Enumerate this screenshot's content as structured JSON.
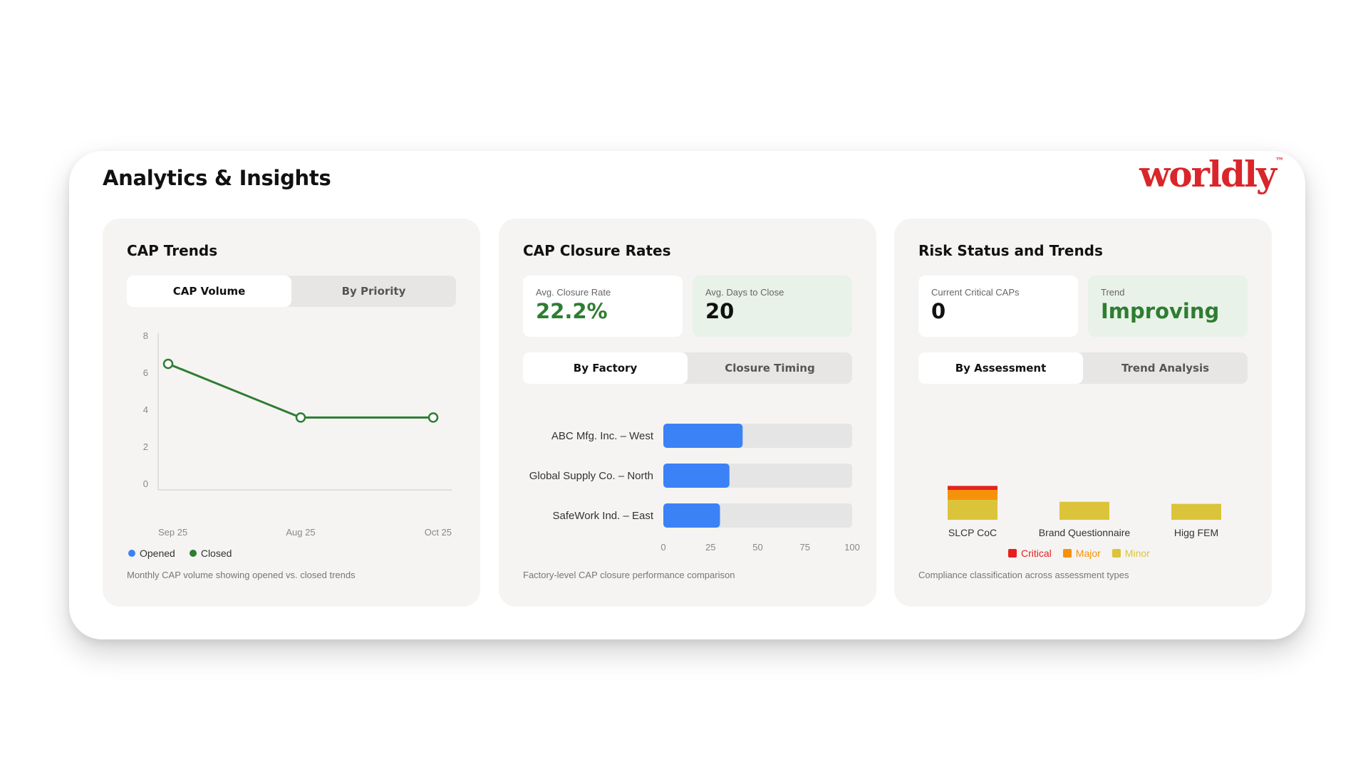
{
  "header": {
    "title": "Analytics & Insights",
    "logo_text": "worldly",
    "logo_tm": "™"
  },
  "colors": {
    "green": "#2e7d32",
    "blue": "#3b82f6",
    "critical": "#e62020",
    "major": "#f5920a",
    "minor": "#dbc43a",
    "logo_red": "#d9262b"
  },
  "cards": {
    "trends": {
      "title": "CAP Trends",
      "tabs": [
        {
          "label": "CAP Volume",
          "active": true
        },
        {
          "label": "By Priority",
          "active": false
        }
      ],
      "legend": [
        {
          "label": "Opened",
          "color": "#3b82f6"
        },
        {
          "label": "Closed",
          "color": "#2e7d32"
        }
      ],
      "caption": "Monthly CAP volume showing opened vs. closed trends"
    },
    "closure": {
      "title": "CAP Closure Rates",
      "stats": [
        {
          "label": "Avg. Closure Rate",
          "value": "22.2%"
        },
        {
          "label": "Avg. Days to Close",
          "value": "20"
        }
      ],
      "tabs": [
        {
          "label": "By Factory",
          "active": true
        },
        {
          "label": "Closure Timing",
          "active": false
        }
      ],
      "caption": "Factory-level CAP closure performance comparison"
    },
    "risk": {
      "title": "Risk Status and Trends",
      "stats": [
        {
          "label": "Current Critical CAPs",
          "value": "0"
        },
        {
          "label": "Trend",
          "value": "Improving"
        }
      ],
      "tabs": [
        {
          "label": "By Assessment",
          "active": true
        },
        {
          "label": "Trend Analysis",
          "active": false
        }
      ],
      "legend": [
        {
          "label": "Critical",
          "color": "#e62020"
        },
        {
          "label": "Major",
          "color": "#f5920a"
        },
        {
          "label": "Minor",
          "color": "#dbc43a"
        }
      ],
      "caption": "Compliance classification across assessment types"
    }
  },
  "chart_data": [
    {
      "type": "line",
      "x": [
        "Sep 25",
        "Aug 25",
        "Oct 25"
      ],
      "series": [
        {
          "name": "Closed",
          "values": [
            6.5,
            3.6,
            3.6
          ]
        }
      ],
      "ylim": [
        0,
        8
      ],
      "yticks": [
        0,
        2,
        4,
        6,
        8
      ],
      "grid": false,
      "legend": "bottom-left"
    },
    {
      "type": "bar",
      "orientation": "horizontal",
      "categories": [
        "ABC Mfg. Inc. – West",
        "Global Supply Co. – North",
        "SafeWork Ind. – East"
      ],
      "values": [
        42,
        35,
        30
      ],
      "xlim": [
        0,
        100
      ],
      "xticks": [
        0,
        25,
        50,
        75,
        100
      ]
    },
    {
      "type": "bar",
      "stacked": true,
      "categories": [
        "SLCP CoC",
        "Brand Questionnaire",
        "Higg FEM"
      ],
      "series": [
        {
          "name": "Minor",
          "values": [
            1.0,
            0.9,
            0.8
          ]
        },
        {
          "name": "Major",
          "values": [
            0.5,
            0,
            0
          ]
        },
        {
          "name": "Critical",
          "values": [
            0.2,
            0,
            0
          ]
        }
      ],
      "legend": "bottom-center"
    }
  ]
}
